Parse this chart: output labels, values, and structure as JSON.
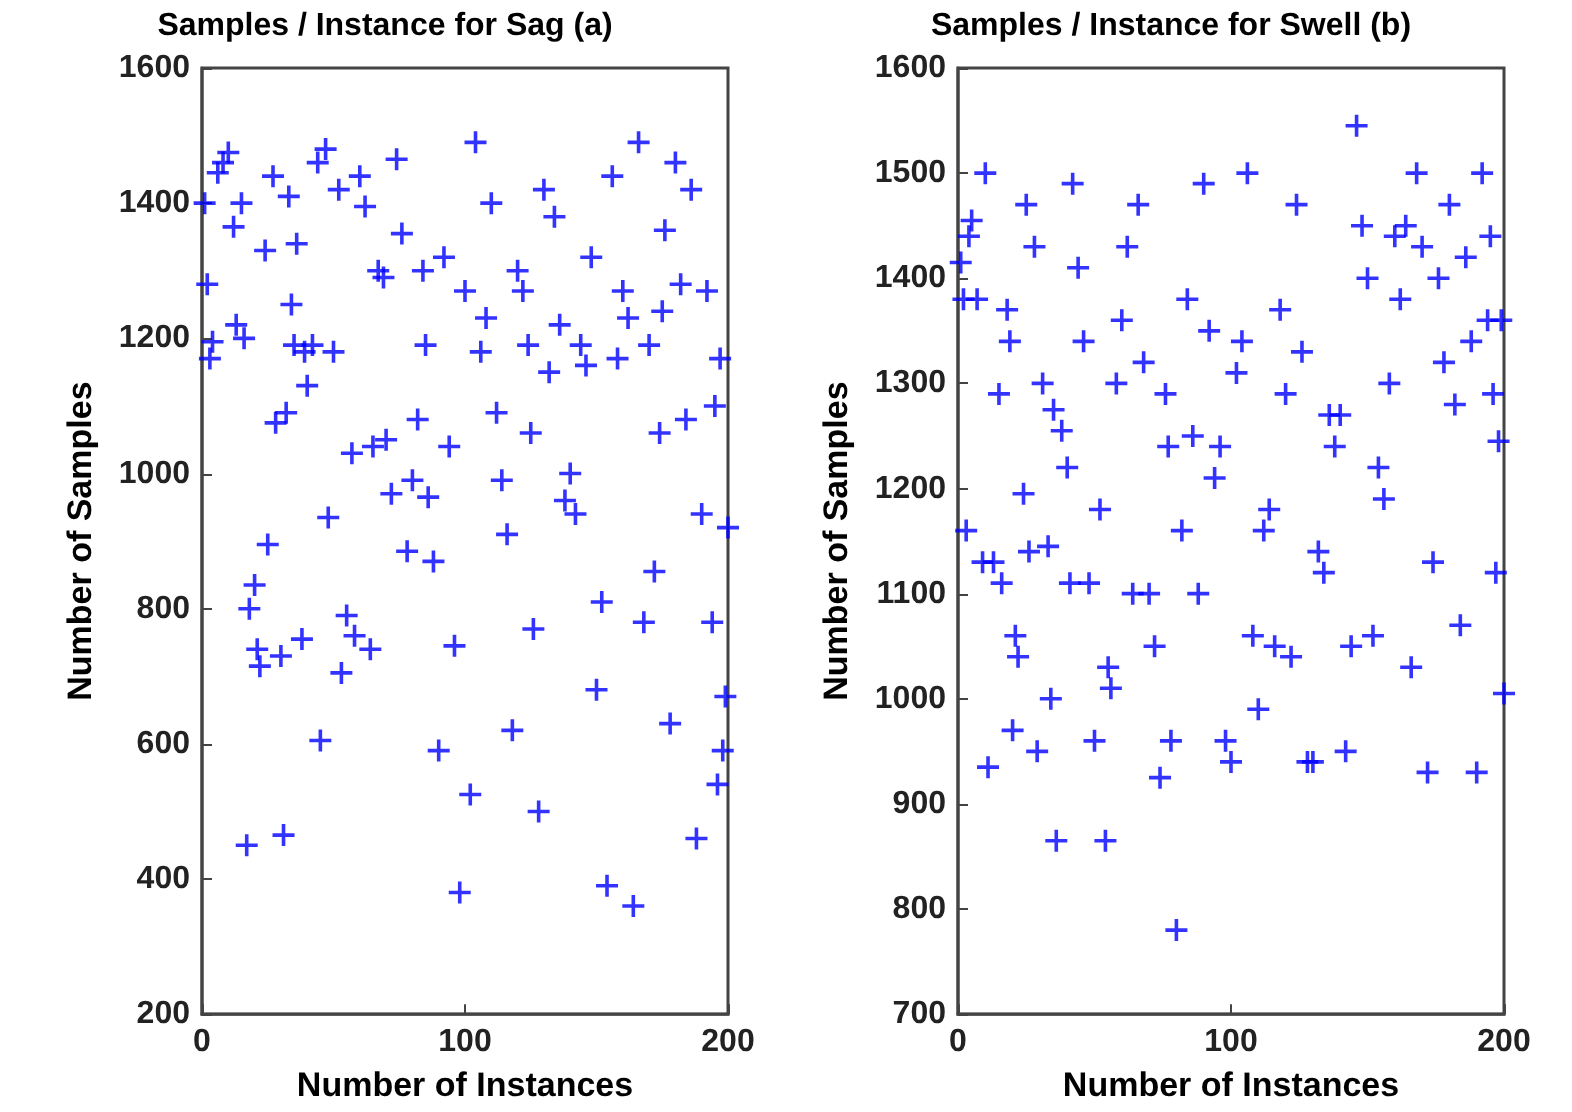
{
  "chart_data": [
    {
      "type": "scatter",
      "title": "Samples / Instance for Sag (a)",
      "xlabel": "Number of Instances",
      "ylabel": "Number of Samples",
      "xlim": [
        0,
        200
      ],
      "xticks": [
        0,
        100,
        200
      ],
      "ylim": [
        200,
        1600
      ],
      "yticks": [
        200,
        400,
        600,
        800,
        1000,
        1200,
        1400,
        1600
      ],
      "grid": false,
      "marker": "cross",
      "series": [
        {
          "color": "#0000ff",
          "x": [
            1,
            2,
            3,
            4,
            6,
            8,
            10,
            12,
            13,
            15,
            16,
            17,
            18,
            20,
            21,
            22,
            24,
            25,
            27,
            28,
            30,
            31,
            32,
            33,
            34,
            36,
            38,
            39,
            40,
            42,
            44,
            45,
            47,
            48,
            50,
            52,
            53,
            55,
            57,
            58,
            60,
            62,
            64,
            65,
            67,
            69,
            70,
            72,
            74,
            76,
            78,
            80,
            82,
            84,
            86,
            88,
            90,
            92,
            94,
            96,
            98,
            100,
            102,
            104,
            106,
            108,
            110,
            112,
            114,
            116,
            118,
            120,
            122,
            124,
            126,
            128,
            130,
            132,
            134,
            136,
            138,
            140,
            142,
            144,
            146,
            148,
            150,
            152,
            154,
            156,
            158,
            160,
            162,
            164,
            166,
            168,
            170,
            172,
            174,
            176,
            178,
            180,
            182,
            184,
            186,
            188,
            190,
            192,
            194,
            196,
            198,
            200,
            199,
            197,
            195,
            175,
            125,
            85,
            35
          ],
          "values": [
            1400,
            1280,
            1170,
            1195,
            1445,
            1460,
            1475,
            1365,
            1220,
            1400,
            1200,
            450,
            800,
            835,
            740,
            715,
            1330,
            895,
            1440,
            1075,
            730,
            465,
            1090,
            1410,
            1250,
            1340,
            755,
            1180,
            1130,
            1190,
            1460,
            605,
            1480,
            935,
            1180,
            1420,
            705,
            790,
            1030,
            760,
            1440,
            1395,
            740,
            1040,
            1300,
            1290,
            1050,
            970,
            1465,
            1355,
            885,
            990,
            1080,
            1300,
            965,
            870,
            590,
            1320,
            1040,
            745,
            380,
            1270,
            525,
            1490,
            1180,
            1230,
            1400,
            1090,
            990,
            910,
            620,
            1300,
            1270,
            1190,
            770,
            500,
            1420,
            1150,
            1380,
            1220,
            960,
            1000,
            940,
            1190,
            1160,
            1320,
            680,
            810,
            390,
            1440,
            1170,
            1270,
            1230,
            360,
            1490,
            780,
            1190,
            855,
            1060,
            1360,
            630,
            1460,
            1280,
            1080,
            1420,
            460,
            940,
            1270,
            780,
            540,
            590,
            920,
            670,
            1170,
            1100,
            1240,
            1060,
            1190,
            1190
          ]
        }
      ]
    },
    {
      "type": "scatter",
      "title": "Samples / Instance for Swell (b)",
      "xlabel": "Number of Instances",
      "ylabel": "Number of Samples",
      "xlim": [
        0,
        200
      ],
      "xticks": [
        0,
        100,
        200
      ],
      "ylim": [
        700,
        1600
      ],
      "yticks": [
        700,
        800,
        900,
        1000,
        1100,
        1200,
        1300,
        1400,
        1500,
        1600
      ],
      "grid": false,
      "marker": "cross",
      "series": [
        {
          "color": "#0000ff",
          "x": [
            1,
            2,
            3,
            4,
            5,
            7,
            9,
            10,
            11,
            13,
            15,
            16,
            18,
            19,
            20,
            21,
            22,
            24,
            25,
            26,
            28,
            29,
            31,
            33,
            34,
            35,
            36,
            38,
            40,
            41,
            42,
            44,
            46,
            48,
            50,
            52,
            54,
            55,
            56,
            58,
            60,
            62,
            64,
            66,
            68,
            70,
            72,
            74,
            76,
            77,
            78,
            80,
            82,
            84,
            86,
            88,
            90,
            92,
            94,
            96,
            98,
            100,
            102,
            104,
            106,
            108,
            110,
            112,
            114,
            116,
            118,
            120,
            122,
            124,
            126,
            128,
            130,
            132,
            134,
            136,
            138,
            140,
            142,
            144,
            146,
            148,
            150,
            152,
            154,
            156,
            158,
            160,
            162,
            164,
            166,
            168,
            170,
            172,
            174,
            176,
            178,
            180,
            182,
            184,
            186,
            188,
            190,
            192,
            194,
            196,
            198,
            200,
            199,
            197,
            195
          ],
          "values": [
            1415,
            1380,
            1160,
            1440,
            1455,
            1380,
            1130,
            1500,
            935,
            1130,
            1290,
            1110,
            1370,
            1340,
            970,
            1060,
            1040,
            1195,
            1470,
            1140,
            1430,
            950,
            1300,
            1145,
            1000,
            1275,
            865,
            1255,
            1220,
            1110,
            1490,
            1410,
            1340,
            1110,
            960,
            1180,
            865,
            1030,
            1010,
            1300,
            1360,
            1430,
            1100,
            1470,
            1320,
            1100,
            1050,
            925,
            1290,
            1240,
            960,
            780,
            1160,
            1380,
            1250,
            1100,
            1490,
            1350,
            1210,
            1240,
            960,
            940,
            1310,
            1340,
            1500,
            1060,
            990,
            1160,
            1180,
            1050,
            1370,
            1290,
            1040,
            1470,
            1330,
            940,
            940,
            1140,
            1120,
            1270,
            1240,
            1270,
            950,
            1050,
            1545,
            1450,
            1400,
            1060,
            1220,
            1190,
            1300,
            1440,
            1380,
            1450,
            1030,
            1500,
            1430,
            930,
            1130,
            1400,
            1320,
            1470,
            1280,
            1070,
            1420,
            1340,
            930,
            1500,
            1360,
            1290,
            1245,
            1005,
            1360,
            1120,
            1440
          ]
        }
      ]
    }
  ]
}
